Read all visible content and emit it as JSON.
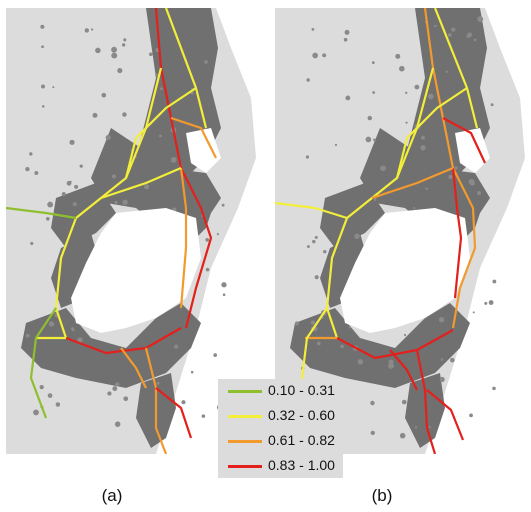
{
  "panels": [
    {
      "id": "a",
      "label": "(a)"
    },
    {
      "id": "b",
      "label": "(b)"
    }
  ],
  "legend": [
    {
      "range": "0.10 - 0.31",
      "color": "#8fbf2f"
    },
    {
      "range": "0.32 - 0.60",
      "color": "#f2ee3a"
    },
    {
      "range": "0.61 - 0.82",
      "color": "#f29a2e"
    },
    {
      "range": "0.83 - 1.00",
      "color": "#e3201b"
    }
  ],
  "colors": {
    "background": "#dcdcdc",
    "urban_area": "#707070",
    "water": "#ffffff"
  }
}
